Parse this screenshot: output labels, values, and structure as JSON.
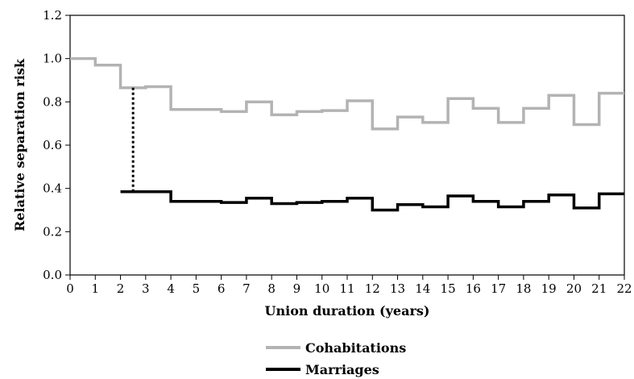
{
  "chart_data": {
    "type": "line",
    "step": true,
    "title": "",
    "xlabel": "Union duration  (years)",
    "ylabel": "Relative separation risk",
    "xlim": [
      0,
      22
    ],
    "ylim": [
      0,
      1.2
    ],
    "x_ticks": [
      "0",
      "1",
      "2",
      "3",
      "4",
      "5",
      "6",
      "7",
      "8",
      "9",
      "10",
      "11",
      "12",
      "13",
      "14",
      "15",
      "16",
      "17",
      "18",
      "19",
      "20",
      "21",
      "22"
    ],
    "y_ticks": [
      "0.0",
      "0.2",
      "0.4",
      "0.6",
      "0.8",
      "1.0",
      "1.2"
    ],
    "grid": false,
    "legend_position": "bottom",
    "series": [
      {
        "name": "Cohabitations",
        "color": "#b3b3b3",
        "x_start": [
          0,
          1,
          2,
          3,
          4,
          5,
          6,
          7,
          8,
          9,
          10,
          11,
          12,
          13,
          14,
          15,
          16,
          17,
          18,
          19,
          20,
          21
        ],
        "values": [
          1.0,
          0.97,
          0.865,
          0.87,
          0.765,
          0.765,
          0.755,
          0.8,
          0.74,
          0.755,
          0.76,
          0.805,
          0.675,
          0.73,
          0.705,
          0.815,
          0.77,
          0.705,
          0.77,
          0.83,
          0.695,
          0.84
        ]
      },
      {
        "name": "Marriages",
        "color": "#000000",
        "x_start": [
          2,
          3,
          4,
          5,
          6,
          7,
          8,
          9,
          10,
          11,
          12,
          13,
          14,
          15,
          16,
          17,
          18,
          19,
          20,
          21
        ],
        "values": [
          0.385,
          0.385,
          0.34,
          0.34,
          0.335,
          0.355,
          0.33,
          0.335,
          0.34,
          0.355,
          0.3,
          0.325,
          0.315,
          0.365,
          0.34,
          0.315,
          0.34,
          0.37,
          0.31,
          0.375
        ]
      }
    ],
    "annotations": [
      {
        "type": "dotted-line",
        "x": 2.5,
        "y_from": 0.385,
        "y_to": 0.87
      }
    ]
  }
}
